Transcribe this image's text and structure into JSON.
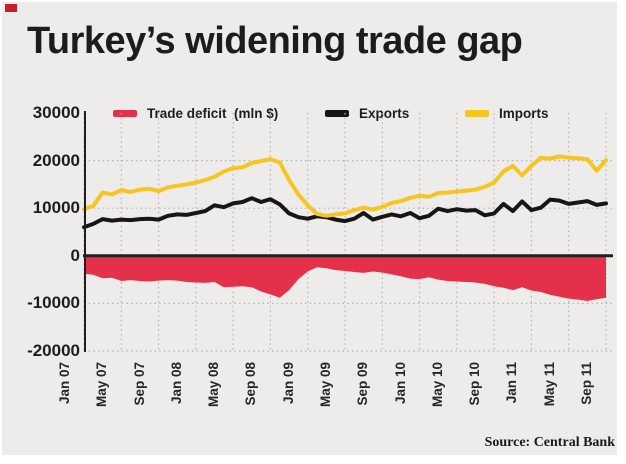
{
  "title": "Turkey’s widening trade gap",
  "source_note": "Source: Central Bank",
  "colors": {
    "background": "#edecea",
    "frame": "#ffffff",
    "brand_red": "#c5202c",
    "deficit_red": "#e5304a",
    "exports_black": "#161616",
    "imports_yellow": "#f6c51f",
    "axis": "#1f1f1f",
    "grid_dots": "#b4b4b4",
    "title_text": "#1c1c1a"
  },
  "legend": [
    {
      "label": "Trade deficit  (mln $)",
      "color": "#e5304a"
    },
    {
      "label": "Exports",
      "color": "#161616"
    },
    {
      "label": "Imports",
      "color": "#f6c51f"
    }
  ],
  "chart_data": {
    "type": "line",
    "title": "Turkey’s widening trade gap",
    "unit": "mln $",
    "frequency": "monthly",
    "x_start": "Jan 2007",
    "x_end": "Sep 2011",
    "n_points": 57,
    "x_tick_labels": [
      "Jan 07",
      "May 07",
      "Sep 07",
      "Jan 08",
      "May 08",
      "Sep 08",
      "Jan 09",
      "May 09",
      "Sep 09",
      "Jan 10",
      "May 10",
      "Sep 10",
      "Jan 11",
      "May 11",
      "Sep 11"
    ],
    "ylim": [
      -20000,
      30000
    ],
    "yticks": [
      30000,
      20000,
      10000,
      0,
      -10000,
      -20000
    ],
    "grid": "dotted",
    "legend_position": "top",
    "series": [
      {
        "name": "Trade deficit (mln $)",
        "type": "area",
        "color": "#e5304a",
        "values": [
          -3800,
          -4000,
          -4700,
          -4600,
          -5300,
          -5100,
          -5300,
          -5400,
          -5200,
          -5100,
          -5200,
          -5500,
          -5600,
          -5700,
          -5500,
          -6600,
          -6500,
          -6400,
          -6600,
          -7500,
          -8100,
          -8800,
          -7200,
          -4900,
          -3300,
          -2400,
          -2600,
          -3000,
          -3200,
          -3400,
          -3600,
          -3300,
          -3500,
          -3900,
          -4300,
          -4800,
          -4900,
          -4500,
          -5000,
          -5300,
          -5400,
          -5500,
          -5600,
          -5900,
          -6400,
          -6700,
          -7200,
          -6600,
          -7300,
          -7600,
          -8200,
          -8600,
          -9000,
          -9200,
          -9500,
          -9100,
          -8800
        ]
      },
      {
        "name": "Exports",
        "type": "line",
        "color": "#161616",
        "values": [
          6000,
          6700,
          7700,
          7400,
          7600,
          7500,
          7700,
          7800,
          7600,
          8400,
          8700,
          8600,
          9000,
          9400,
          10600,
          10200,
          11000,
          11300,
          12100,
          11300,
          11900,
          10800,
          8900,
          8100,
          7800,
          8300,
          8100,
          7600,
          7300,
          7800,
          9000,
          7600,
          8200,
          8700,
          8300,
          9000,
          7900,
          8400,
          9900,
          9400,
          9800,
          9500,
          9600,
          8500,
          8900,
          10900,
          9400,
          11400,
          9600,
          10100,
          11800,
          11600,
          10900,
          11200,
          11500,
          10700,
          11000
        ]
      },
      {
        "name": "Imports",
        "type": "line",
        "color": "#f6c51f",
        "values": [
          9800,
          10500,
          13300,
          12900,
          13800,
          13400,
          13900,
          14100,
          13600,
          14400,
          14700,
          15000,
          15400,
          15900,
          16600,
          17700,
          18400,
          18600,
          19500,
          19900,
          20300,
          19600,
          15900,
          12900,
          10600,
          8800,
          8400,
          8700,
          8900,
          9600,
          10100,
          9700,
          10300,
          11100,
          11500,
          12200,
          12600,
          12400,
          13200,
          13300,
          13500,
          13700,
          13900,
          14500,
          15400,
          17700,
          18900,
          16900,
          18900,
          20600,
          20400,
          20900,
          20600,
          20500,
          20300,
          17900,
          20100
        ]
      }
    ]
  }
}
